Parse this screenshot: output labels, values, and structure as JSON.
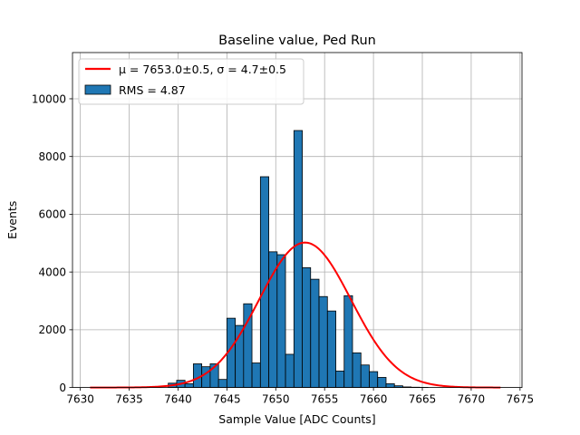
{
  "chart_data": {
    "type": "bar",
    "title": "Baseline value, Ped Run",
    "xlabel": "Sample Value [ADC Counts]",
    "ylabel": "Events",
    "xlim": [
      7629.2,
      7675.2
    ],
    "ylim": [
      0,
      11600
    ],
    "xticks": [
      7630,
      7635,
      7640,
      7645,
      7650,
      7655,
      7660,
      7665,
      7670,
      7675
    ],
    "yticks": [
      0,
      2000,
      4000,
      6000,
      8000,
      10000
    ],
    "grid": true,
    "legend_position": "top-left",
    "legend": [
      {
        "kind": "line",
        "label": "μ = 7653.0±0.5, σ = 4.7±0.5",
        "color": "#ff0000"
      },
      {
        "kind": "bar",
        "label": "RMS = 4.87",
        "color": "#1f77b4"
      }
    ],
    "bin_width": 0.8571,
    "histogram": {
      "name": "RMS = 4.87",
      "bin_left_edges": [
        7639.0,
        7639.86,
        7640.71,
        7641.57,
        7642.43,
        7643.29,
        7644.14,
        7645.0,
        7645.86,
        7646.71,
        7647.57,
        7648.43,
        7649.29,
        7650.14,
        7651.0,
        7651.86,
        7652.71,
        7653.57,
        7654.43,
        7655.29,
        7656.14,
        7657.0,
        7657.86,
        7658.71,
        7659.57,
        7660.43,
        7661.29,
        7662.14,
        7663.0,
        7663.86,
        7664.71
      ],
      "values": [
        150,
        250,
        130,
        820,
        720,
        820,
        280,
        2400,
        2150,
        2900,
        850,
        7300,
        4700,
        4600,
        1150,
        8900,
        4150,
        3750,
        3150,
        2650,
        570,
        3180,
        1200,
        780,
        550,
        350,
        130,
        60,
        20,
        10,
        5
      ]
    },
    "fit_curve": {
      "name": "μ = 7653.0±0.5, σ = 4.7±0.5",
      "type": "gaussian",
      "mu": 7653.0,
      "sigma": 4.7,
      "amplitude": 5020,
      "x_range": [
        7631,
        7673
      ]
    },
    "colors": {
      "bar_fill": "#1f77b4",
      "bar_edge": "#000000",
      "fit": "#ff0000",
      "grid": "#b0b0b0"
    }
  }
}
